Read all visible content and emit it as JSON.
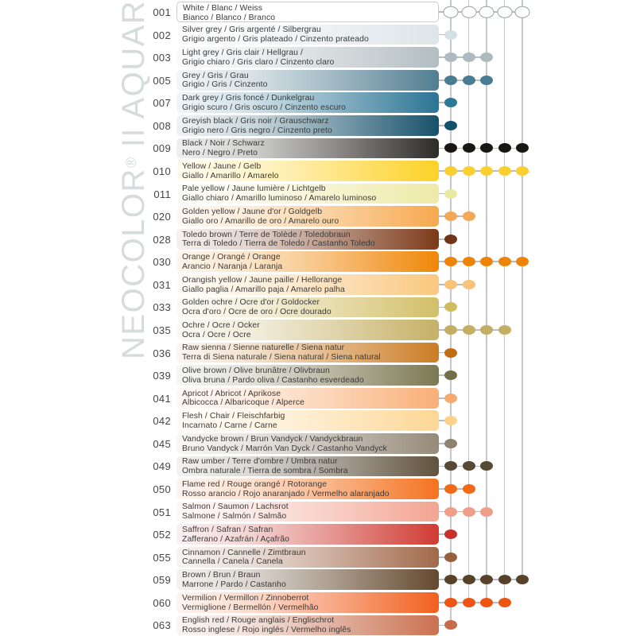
{
  "watermark": {
    "brand": "NEOCOLOR",
    "reg": "®",
    "range": " II AQUARELLE"
  },
  "grid": {
    "columns": 5,
    "line_color": "#c4c8c8",
    "connector_color": "#b9bdbd"
  },
  "rows": [
    {
      "code": "001",
      "line1": "White / Blanc / Weiss",
      "line2": "Bianco / Blanco / Branco",
      "color": "#ffffff",
      "dot": "#ffffff",
      "dots": 5,
      "outlined": true
    },
    {
      "code": "002",
      "line1": "Silver grey / Gris argenté / Silbergrau",
      "line2": "Grigio argento / Gris plateado / Cinzento prateado",
      "color": "#dde5e9",
      "dot": "#d5dfe4",
      "dots": 1
    },
    {
      "code": "003",
      "line1": "Light grey / Gris clair / Hellgrau /",
      "line2": "Grigio chiaro / Gris claro / Cinzento claro",
      "color": "#b3bec2",
      "dot": "#adbabf",
      "dots": 3
    },
    {
      "code": "005",
      "line1": "Grey / Gris / Grau",
      "line2": "Grigio / Gris / Cinzento",
      "color": "#527e92",
      "dot": "#497b91",
      "dots": 3
    },
    {
      "code": "007",
      "line1": "Dark grey / Gris foncé / Dunkelgrau",
      "line2": "Grigio scuro / Gris oscuro / Cinzento escuro",
      "color": "#2b7595",
      "dot": "#2b7897",
      "dots": 1
    },
    {
      "code": "008",
      "line1": "Greyish black / Gris noir / Grauschwarz",
      "line2": "Grigio nero / Gris negro / Cinzento preto",
      "color": "#17516b",
      "dot": "#144f6b",
      "dots": 1
    },
    {
      "code": "009",
      "line1": "Black / Noir / Schwarz",
      "line2": "Nero / Negro / Preto",
      "color": "#2d2c2a",
      "dot": "#191714",
      "dots": 5
    },
    {
      "code": "010",
      "line1": "Yellow / Jaune / Gelb",
      "line2": "Giallo / Amarillo / Amarelo",
      "color": "#fdd125",
      "dot": "#fccf30",
      "dots": 5
    },
    {
      "code": "011",
      "line1": "Pale yellow / Jaune lumière / Lichtgelb",
      "line2": "Giallo chiaro / Amarillo luminoso / Amarelo luminoso",
      "color": "#edeaa7",
      "dot": "#ebe8a2",
      "dots": 1
    },
    {
      "code": "020",
      "line1": "Golden yellow / Jaune d'or / Goldgelb",
      "line2": "Giallo oro / Amarillo de oro / Amarelo ouro",
      "color": "#f6a94f",
      "dot": "#f4a757",
      "dots": 2
    },
    {
      "code": "028",
      "line1": "Toledo brown / Terre de Tolède / Toledobraun",
      "line2": "Terra di Toledo / Tierra de Toledo / Castanho Toledo",
      "color": "#7c3a1a",
      "dot": "#703418",
      "dots": 1
    },
    {
      "code": "030",
      "line1": "Orange / Orangé / Orange",
      "line2": "Arancio / Naranja / Laranja",
      "color": "#ef8708",
      "dot": "#ee8405",
      "dots": 5
    },
    {
      "code": "031",
      "line1": "Orangish yellow / Jaune paille / Hellorange",
      "line2": "Giallo paglia / Amarillo paja / Amarelo palha",
      "color": "#fac87f",
      "dot": "#f9c377",
      "dots": 2
    },
    {
      "code": "033",
      "line1": "Golden ochre / Ocre d'or / Goldocker",
      "line2": "Ocra d'oro / Ocre de oro / Ocre dourado",
      "color": "#d2bf68",
      "dot": "#cfbb60",
      "dots": 1
    },
    {
      "code": "035",
      "line1": "Ochre / Ocre / Ocker",
      "line2": "Ocra / Ocre / Ocre",
      "color": "#c5b166",
      "dot": "#c3af63",
      "dots": 4
    },
    {
      "code": "036",
      "line1": "Raw sienna / Sienne naturelle / Siena natur",
      "line2": "Terra di Siena naturale / Siena natural / Siena natural",
      "color": "#cb7c24",
      "dot": "#c16e12",
      "dots": 1
    },
    {
      "code": "039",
      "line1": "Olive brown / Olive brunâtre / Olivbraun",
      "line2": "Oliva bruna / Pardo oliva / Castanho esverdeado",
      "color": "#7c7952",
      "dot": "#716e49",
      "dots": 1
    },
    {
      "code": "041",
      "line1": "Apricot / Abricot / Aprikose",
      "line2": "Albicocca / Albaricoque / Alperce",
      "color": "#f9af77",
      "dot": "#f7a970",
      "dots": 1
    },
    {
      "code": "042",
      "line1": "Flesh / Chair / Fleischfarbig",
      "line2": "Incarnato / Carne / Carne",
      "color": "#fdd795",
      "dot": "#fdd28b",
      "dots": 1
    },
    {
      "code": "045",
      "line1": "Vandycke brown / Brun Vandyck / Vandyckbraun",
      "line2": "Bruno Vandyck / Marrón Van Dyck / Castanho Vandyck",
      "color": "#968a79",
      "dot": "#8f8270",
      "dots": 1
    },
    {
      "code": "049",
      "line1": "Raw umber / Terre d'ombre / Umbra natur",
      "line2": "Ombra naturale / Tierra de sombra / Sombra",
      "color": "#60533e",
      "dot": "#564935",
      "dots": 3
    },
    {
      "code": "050",
      "line1": "Flame red / Rouge orangé / Rotorange",
      "line2": "Rosso arancio / Rojo anaranjado / Vermelho alaranjado",
      "color": "#f4731f",
      "dot": "#f26a15",
      "dots": 2
    },
    {
      "code": "051",
      "line1": "Salmon / Saumon / Lachsrot",
      "line2": "Salmone / Salmón / Salmão",
      "color": "#f3a492",
      "dot": "#f09d89",
      "dots": 3
    },
    {
      "code": "052",
      "line1": "Saffron / Safran / Safran",
      "line2": "Zafferano / Azafrán / Açafrão",
      "color": "#cf3b33",
      "dot": "#c93029",
      "dots": 1
    },
    {
      "code": "055",
      "line1": "Cinnamon / Cannelle / Zimtbraun",
      "line2": "Cannella / Canela / Canela",
      "color": "#a1694a",
      "dot": "#97613d",
      "dots": 1
    },
    {
      "code": "059",
      "line1": "Brown / Brun / Braun",
      "line2": "Marrone / Pardo / Castanho",
      "color": "#64492e",
      "dot": "#59422a",
      "dots": 5
    },
    {
      "code": "060",
      "line1": "Vermilion / Vermillon / Zinnoberrot",
      "line2": "Vermiglione / Bermellón / Vermelhão",
      "color": "#f2601f",
      "dot": "#ef5512",
      "dots": 4
    },
    {
      "code": "063",
      "line1": "English red / Rouge anglais / Englischrot",
      "line2": "Rosso inglese / Rojo inglés / Vermelho inglês",
      "color": "#ca7150",
      "dot": "#c66d4b",
      "dots": 1
    }
  ]
}
